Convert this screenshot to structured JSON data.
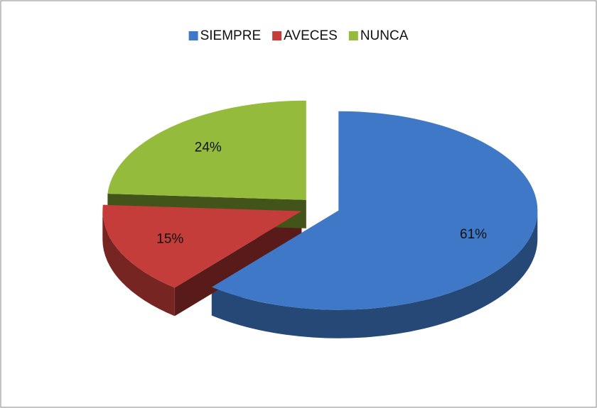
{
  "chart_data": {
    "type": "pie3d",
    "categories": [
      "SIEMPRE",
      "AVECES",
      "NUNCA"
    ],
    "values": [
      61,
      15,
      24
    ],
    "value_labels": [
      "61%",
      "15%",
      "24%"
    ],
    "colors": [
      "#3f78c6",
      "#c43d3a",
      "#94bb3c"
    ],
    "legend": "top"
  }
}
